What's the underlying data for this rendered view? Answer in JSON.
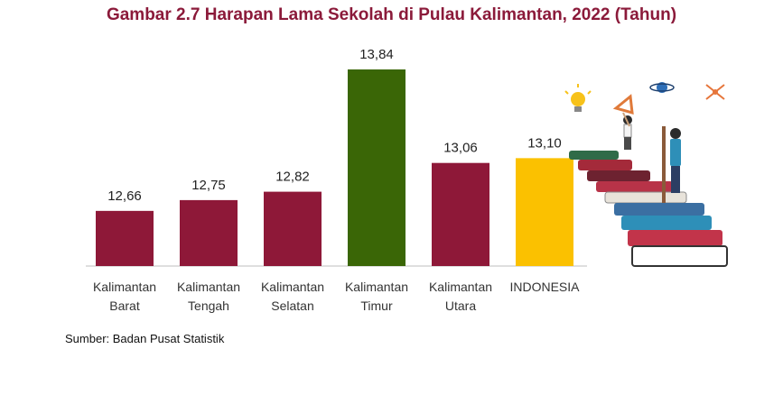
{
  "chart_data": {
    "type": "bar",
    "title": "Gambar 2.7 Harapan Lama Sekolah di Pulau Kalimantan, 2022 (Tahun)",
    "categories": [
      [
        "Kalimantan",
        "Barat"
      ],
      [
        "Kalimantan",
        "Tengah"
      ],
      [
        "Kalimantan",
        "Selatan"
      ],
      [
        "Kalimantan",
        "Timur"
      ],
      [
        "Kalimantan",
        "Utara"
      ],
      [
        "INDONESIA"
      ]
    ],
    "values": [
      12.66,
      12.75,
      12.82,
      13.84,
      13.06,
      13.1
    ],
    "value_labels": [
      "12,66",
      "12,75",
      "12,82",
      "13,84",
      "13,06",
      "13,10"
    ],
    "colors": [
      "#8e1838",
      "#8e1838",
      "#8e1838",
      "#3a6606",
      "#8e1838",
      "#fbc100"
    ],
    "xlabel": "",
    "ylabel": "",
    "ylim": [
      12.2,
      13.84
    ],
    "grid": false,
    "legend": "none"
  },
  "source": "Sumber: Badan Pusat Statistik",
  "illustration": "books-and-students-icon"
}
